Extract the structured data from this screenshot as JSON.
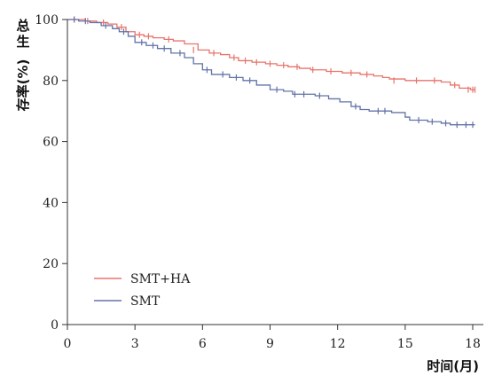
{
  "chart_data": {
    "type": "line",
    "step": true,
    "xlabel": "时间(月)",
    "ylabel": "总生存率(%)",
    "xlim": [
      0,
      18.3
    ],
    "ylim": [
      0,
      100
    ],
    "xticks": [
      0,
      3,
      6,
      9,
      12,
      15,
      18
    ],
    "yticks": [
      0,
      20,
      40,
      60,
      80,
      100
    ],
    "grid": false,
    "legend_position": "bottom-left",
    "series": [
      {
        "name": "SMT+HA",
        "color": "#e8736c",
        "x": [
          0,
          0.8,
          1.3,
          1.8,
          2.2,
          2.6,
          3.0,
          3.4,
          3.8,
          4.3,
          4.7,
          5.2,
          5.8,
          6.3,
          6.8,
          7.2,
          7.6,
          8.2,
          8.8,
          9.3,
          9.8,
          10.3,
          10.8,
          11.5,
          12.2,
          13.0,
          13.6,
          14.0,
          14.3,
          15.0,
          16.0,
          16.6,
          17.0,
          17.4,
          17.9,
          18.1
        ],
        "y": [
          100,
          99.5,
          99,
          98.5,
          97.5,
          96,
          95,
          94.5,
          94,
          93.5,
          93,
          92,
          90,
          89,
          88.5,
          87.5,
          86.5,
          86,
          85.5,
          85,
          84.5,
          84,
          83.5,
          83,
          82.5,
          82,
          81.5,
          81,
          80.5,
          80,
          80,
          79.5,
          78.5,
          77.5,
          77,
          77
        ],
        "censor_x": [
          0.3,
          0.9,
          1.6,
          2.4,
          3.2,
          3.6,
          4.5,
          5.6,
          6.5,
          7.4,
          7.9,
          8.4,
          9.0,
          9.6,
          10.2,
          10.9,
          11.7,
          12.6,
          13.3,
          14.5,
          15.5,
          16.3,
          17.2,
          17.8,
          18.0,
          18.1
        ],
        "censor_y": [
          100,
          99.5,
          99,
          97.5,
          95,
          94.5,
          93.5,
          90,
          89,
          87.5,
          86.5,
          86,
          85.5,
          85,
          84.5,
          83.5,
          83,
          82.5,
          82,
          80,
          80,
          80,
          78.5,
          77,
          77,
          77
        ]
      },
      {
        "name": "SMT",
        "color": "#6373a8",
        "x": [
          0,
          0.5,
          1.0,
          1.5,
          2.0,
          2.3,
          2.7,
          3.0,
          3.5,
          4.0,
          4.6,
          5.2,
          5.6,
          6.0,
          6.4,
          7.2,
          7.8,
          8.4,
          9.0,
          9.6,
          10.0,
          11.0,
          11.6,
          12.1,
          12.6,
          13.0,
          13.4,
          14.4,
          15.0,
          15.2,
          16.0,
          16.6,
          17.0,
          17.8,
          18.1
        ],
        "y": [
          100,
          99.5,
          99,
          98,
          97,
          96,
          94.5,
          92.5,
          91.5,
          90.5,
          89,
          87.5,
          85.5,
          83.5,
          82,
          81,
          80,
          78.5,
          77,
          76.5,
          75.5,
          75,
          74,
          73,
          71.5,
          70.5,
          70,
          69.5,
          68,
          67,
          66.5,
          66,
          65.5,
          65.5,
          65.5
        ],
        "censor_x": [
          0.3,
          0.8,
          1.7,
          2.5,
          3.3,
          3.8,
          4.3,
          5.0,
          6.2,
          6.9,
          7.5,
          8.1,
          9.3,
          10.1,
          10.5,
          11.2,
          12.8,
          13.8,
          14.1,
          15.6,
          16.2,
          16.8,
          17.3,
          17.7,
          18.0
        ],
        "censor_y": [
          100,
          99.5,
          98,
          96,
          92.5,
          91.5,
          90.5,
          89,
          83.5,
          82,
          81,
          80,
          77,
          75.5,
          75.5,
          75,
          71.5,
          70,
          70,
          67,
          66.5,
          66,
          65.5,
          65.5,
          65.5
        ]
      }
    ]
  }
}
